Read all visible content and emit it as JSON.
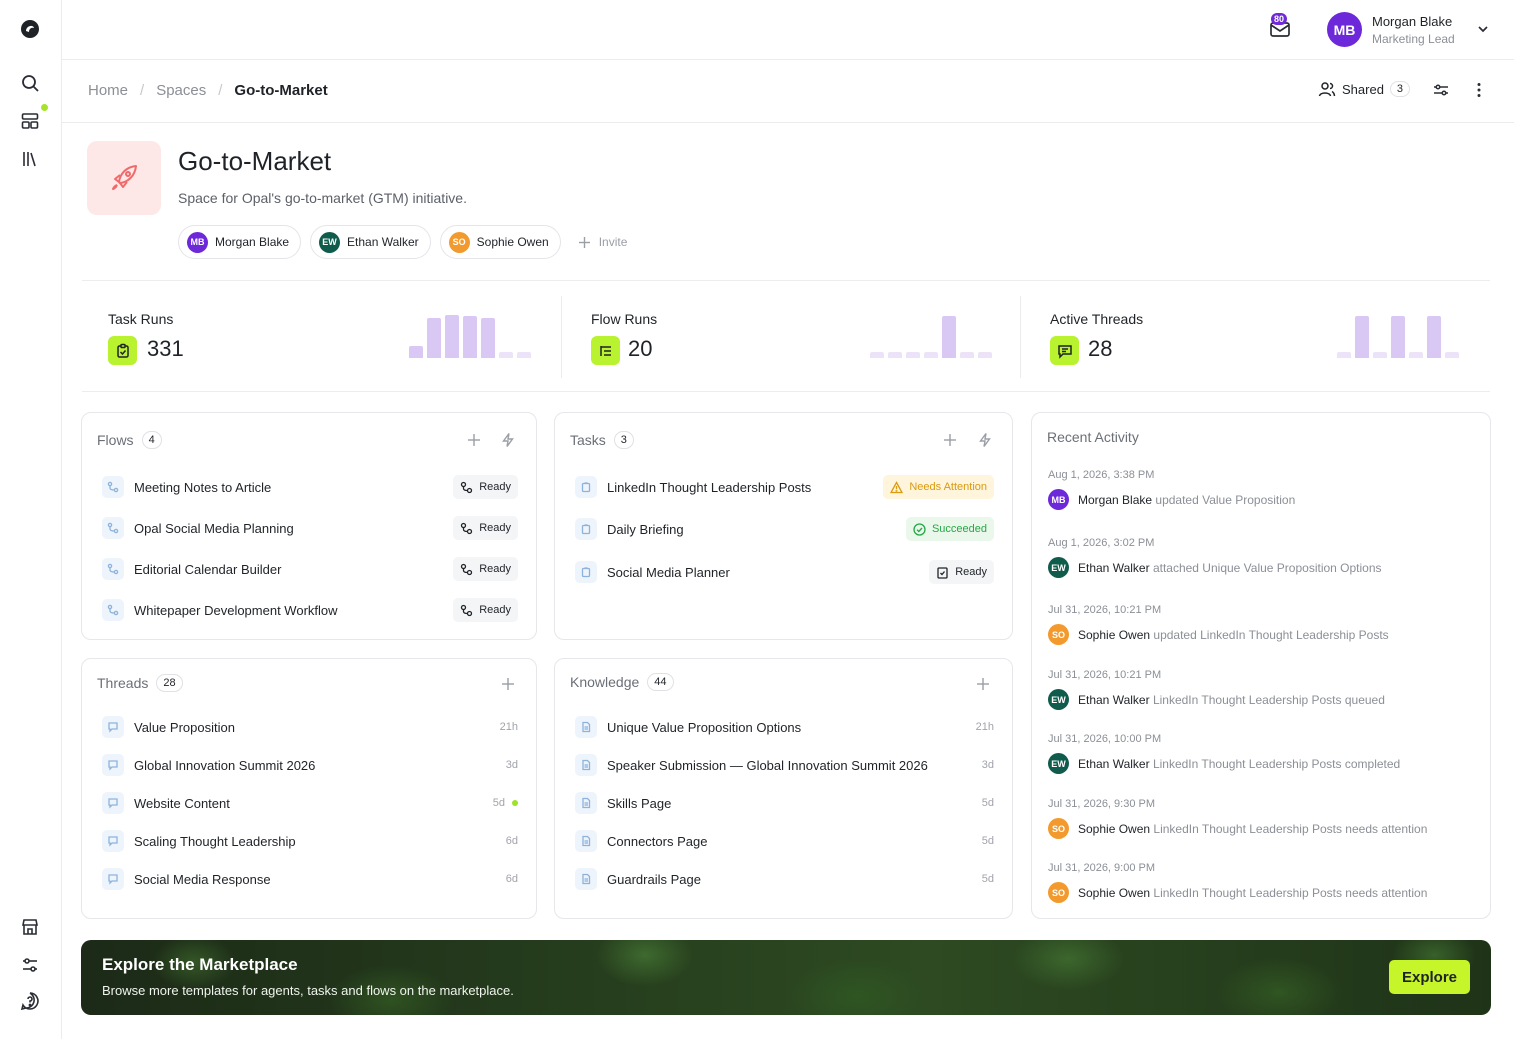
{
  "topbar": {
    "mail_badge": "80",
    "user_initials": "MB",
    "user_name": "Morgan Blake",
    "user_role": "Marketing Lead"
  },
  "breadcrumb": [
    "Home",
    "Spaces",
    "Go-to-Market"
  ],
  "header": {
    "shared_label": "Shared",
    "shared_count": "3"
  },
  "space": {
    "title": "Go-to-Market",
    "description": "Space for Opal's go-to-market (GTM) initiative.",
    "members": [
      {
        "initials": "MB",
        "name": "Morgan Blake",
        "color": "#6d28d9"
      },
      {
        "initials": "EW",
        "name": "Ethan Walker",
        "color": "#0f5c4c"
      },
      {
        "initials": "SO",
        "name": "Sophie Owen",
        "color": "#f39a2e"
      }
    ],
    "invite_label": "Invite"
  },
  "stats": [
    {
      "label": "Task Runs",
      "value": "331",
      "bars": [
        0.2,
        0.65,
        0.7,
        0.68,
        0.65,
        0.1,
        0.1
      ]
    },
    {
      "label": "Flow Runs",
      "value": "20",
      "bars": [
        0.1,
        0.1,
        0.1,
        0.1,
        0.68,
        0.1,
        0.1
      ]
    },
    {
      "label": "Active Threads",
      "value": "28",
      "bars": [
        0.1,
        0.68,
        0.1,
        0.68,
        0.1,
        0.68,
        0.1
      ]
    }
  ],
  "flows": {
    "title": "Flows",
    "count": "4",
    "items": [
      {
        "label": "Meeting Notes to Article",
        "status": "Ready"
      },
      {
        "label": "Opal Social Media Planning",
        "status": "Ready"
      },
      {
        "label": "Editorial Calendar Builder",
        "status": "Ready"
      },
      {
        "label": "Whitepaper Development Workflow",
        "status": "Ready"
      }
    ]
  },
  "tasks": {
    "title": "Tasks",
    "count": "3",
    "items": [
      {
        "label": "LinkedIn Thought Leadership Posts",
        "status": "Needs Attention"
      },
      {
        "label": "Daily Briefing",
        "status": "Succeeded"
      },
      {
        "label": "Social Media Planner",
        "status": "Ready"
      }
    ]
  },
  "threads": {
    "title": "Threads",
    "count": "28",
    "items": [
      {
        "label": "Value Proposition",
        "age": "21h"
      },
      {
        "label": "Global Innovation Summit 2026",
        "age": "3d"
      },
      {
        "label": "Website Content",
        "age": "5d"
      },
      {
        "label": "Scaling Thought Leadership",
        "age": "6d"
      },
      {
        "label": "Social Media Response",
        "age": "6d"
      }
    ]
  },
  "knowledge": {
    "title": "Knowledge",
    "count": "44",
    "items": [
      {
        "label": "Unique Value Proposition Options",
        "age": "21h"
      },
      {
        "label": "Speaker Submission — Global Innovation Summit 2026",
        "age": "3d"
      },
      {
        "label": "Skills Page",
        "age": "5d"
      },
      {
        "label": "Connectors Page",
        "age": "5d"
      },
      {
        "label": "Guardrails Page",
        "age": "5d"
      }
    ]
  },
  "activity": {
    "title": "Recent Activity",
    "items": [
      {
        "time": "Aug 1, 2026, 3:38 PM",
        "initials": "MB",
        "color": "#6d28d9",
        "who": "Morgan Blake",
        "what": "updated Value Proposition"
      },
      {
        "time": "Aug 1, 2026, 3:02 PM",
        "initials": "EW",
        "color": "#0f5c4c",
        "who": "Ethan Walker",
        "what": "attached Unique Value Proposition Options"
      },
      {
        "time": "Jul 31, 2026, 10:21 PM",
        "initials": "SO",
        "color": "#f39a2e",
        "who": "Sophie Owen",
        "what": "updated LinkedIn Thought Leadership Posts"
      },
      {
        "time": "Jul 31, 2026, 10:21 PM",
        "initials": "EW",
        "color": "#0f5c4c",
        "who": "Ethan Walker",
        "what": "LinkedIn Thought Leadership Posts queued"
      },
      {
        "time": "Jul 31, 2026, 10:00 PM",
        "initials": "EW",
        "color": "#0f5c4c",
        "who": "Ethan Walker",
        "what": "LinkedIn Thought Leadership Posts completed"
      },
      {
        "time": "Jul 31, 2026, 9:30 PM",
        "initials": "SO",
        "color": "#f39a2e",
        "who": "Sophie Owen",
        "what": "LinkedIn Thought Leadership Posts needs attention"
      },
      {
        "time": "Jul 31, 2026, 9:00 PM",
        "initials": "SO",
        "color": "#f39a2e",
        "who": "Sophie Owen",
        "what": "LinkedIn Thought Leadership Posts needs attention"
      }
    ]
  },
  "banner": {
    "title": "Explore the Marketplace",
    "subtitle": "Browse more templates for agents, tasks and flows on the marketplace.",
    "button": "Explore"
  },
  "icons": {
    "rail": [
      "logo-icon",
      "search-icon",
      "spaces-icon",
      "library-icon",
      "store-icon",
      "settings-sliders-icon",
      "help-icon"
    ],
    "accent": "#b9f22e",
    "bar_color": "#d9c8f3"
  }
}
